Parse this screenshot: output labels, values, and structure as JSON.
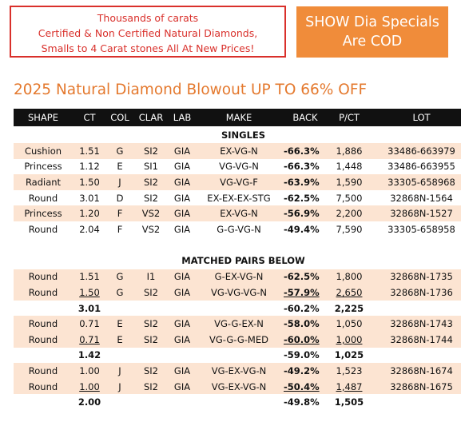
{
  "banner": {
    "lines": [
      "Thousands of carats",
      "Certified & Non Certified Natural Diamonds,",
      "Smalls to 4 Carat stones  All At New Prices!"
    ]
  },
  "promo": {
    "lines": [
      "SHOW Dia Specials",
      "Are COD"
    ]
  },
  "title": "2025 Natural Diamond Blowout UP TO 66% OFF",
  "table": {
    "headers": [
      "SHAPE",
      "CT",
      "COL",
      "CLAR",
      "LAB",
      "MAKE",
      "BACK",
      "P/CT",
      "LOT"
    ],
    "singles_label": "SINGLES",
    "singles": [
      {
        "shape": "Cushion",
        "ct": "1.51",
        "col": "G",
        "clar": "SI2",
        "lab": "GIA",
        "make": "EX-VG-N",
        "back": "-66.3%",
        "pct": "1,886",
        "lot": "33486-663979"
      },
      {
        "shape": "Princess",
        "ct": "1.12",
        "col": "E",
        "clar": "SI1",
        "lab": "GIA",
        "make": "VG-VG-N",
        "back": "-66.3%",
        "pct": "1,448",
        "lot": "33486-663955"
      },
      {
        "shape": "Radiant",
        "ct": "1.50",
        "col": "J",
        "clar": "SI2",
        "lab": "GIA",
        "make": "VG-VG-F",
        "back": "-63.9%",
        "pct": "1,590",
        "lot": "33305-658968"
      },
      {
        "shape": "Round",
        "ct": "3.01",
        "col": "D",
        "clar": "SI2",
        "lab": "GIA",
        "make": "EX-EX-EX-STG",
        "back": "-62.5%",
        "pct": "7,500",
        "lot": "32868N-1564"
      },
      {
        "shape": "Princess",
        "ct": "1.20",
        "col": "F",
        "clar": "VS2",
        "lab": "GIA",
        "make": "EX-VG-N",
        "back": "-56.9%",
        "pct": "2,200",
        "lot": "32868N-1527"
      },
      {
        "shape": "Round",
        "ct": "2.04",
        "col": "F",
        "clar": "VS2",
        "lab": "GIA",
        "make": "G-G-VG-N",
        "back": "-49.4%",
        "pct": "7,590",
        "lot": "33305-658958"
      }
    ],
    "pairs_label": "MATCHED PAIRS BELOW",
    "pairs": [
      {
        "rows": [
          {
            "shape": "Round",
            "ct": "1.51",
            "col": "G",
            "clar": "I1",
            "lab": "GIA",
            "make": "G-EX-VG-N",
            "back": "-62.5%",
            "pct": "1,800",
            "lot": "32868N-1735"
          },
          {
            "shape": "Round",
            "ct": "1.50",
            "col": "G",
            "clar": "SI2",
            "lab": "GIA",
            "make": "VG-VG-VG-N",
            "back": "-57.9%",
            "pct": "2,650",
            "lot": "32868N-1736"
          }
        ],
        "total": {
          "ct": "3.01",
          "back": "-60.2%",
          "pct": "2,225"
        }
      },
      {
        "rows": [
          {
            "shape": "Round",
            "ct": "0.71",
            "col": "E",
            "clar": "SI2",
            "lab": "GIA",
            "make": "VG-G-EX-N",
            "back": "-58.0%",
            "pct": "1,050",
            "lot": "32868N-1743"
          },
          {
            "shape": "Round",
            "ct": "0.71",
            "col": "E",
            "clar": "SI2",
            "lab": "GIA",
            "make": "VG-G-G-MED",
            "back": "-60.0%",
            "pct": "1,000",
            "lot": "32868N-1744"
          }
        ],
        "total": {
          "ct": "1.42",
          "back": "-59.0%",
          "pct": "1,025"
        }
      },
      {
        "rows": [
          {
            "shape": "Round",
            "ct": "1.00",
            "col": "J",
            "clar": "SI2",
            "lab": "GIA",
            "make": "VG-EX-VG-N",
            "back": "-49.2%",
            "pct": "1,523",
            "lot": "32868N-1674"
          },
          {
            "shape": "Round",
            "ct": "1.00",
            "col": "J",
            "clar": "SI2",
            "lab": "GIA",
            "make": "VG-EX-VG-N",
            "back": "-50.4%",
            "pct": "1,487",
            "lot": "32868N-1675"
          }
        ],
        "total": {
          "ct": "2.00",
          "back": "-49.8%",
          "pct": "1,505"
        }
      }
    ]
  },
  "colors": {
    "banner_red": "#d9302b",
    "promo_orange": "#f08c3a",
    "title_orange": "#e4792e",
    "row_tint": "#fce4d2",
    "header_black": "#111111"
  }
}
